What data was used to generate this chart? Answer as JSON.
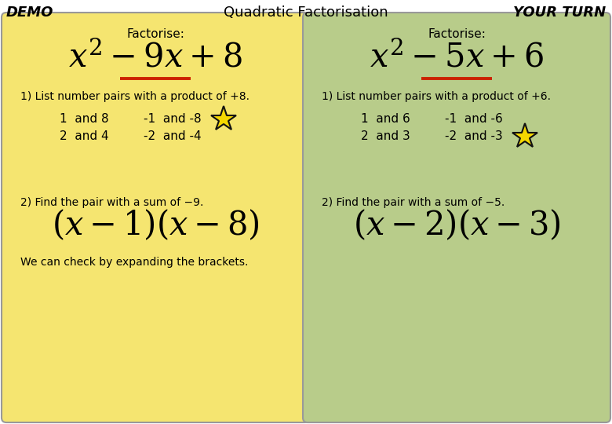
{
  "title": "Quadratic Factorisation",
  "demo_label": "DEMO",
  "yourturn_label": "YOUR TURN",
  "bg_color": "#ffffff",
  "left_bg": "#f5e570",
  "right_bg": "#b8cc8a",
  "border_color": "#999999",
  "underline_color": "#cc2200",
  "left": {
    "factorise_label": "Factorise:",
    "eq_tex": "$x^2 - 9x + 8$",
    "step1": "1) List number pairs with a product of +8.",
    "pairs_col1": [
      "1  and 8",
      "2  and 4"
    ],
    "pairs_col2": [
      "-1  and -8",
      "-2  and -4"
    ],
    "star_row": 0,
    "step2": "2) Find the pair with a sum of −9.",
    "ans_tex": "$( x - 1 )( x - 8 )$",
    "check": "We can check by expanding the brackets."
  },
  "right": {
    "factorise_label": "Factorise:",
    "eq_tex": "$x^2 - 5x + 6$",
    "step1": "1) List number pairs with a product of +6.",
    "pairs_col1": [
      "1  and 6",
      "2  and 3"
    ],
    "pairs_col2": [
      "-1  and -6",
      "-2  and -3"
    ],
    "star_row": 1,
    "step2": "2) Find the pair with a sum of −5.",
    "ans_tex": "$( x - 2 )( x - 3 )$"
  }
}
